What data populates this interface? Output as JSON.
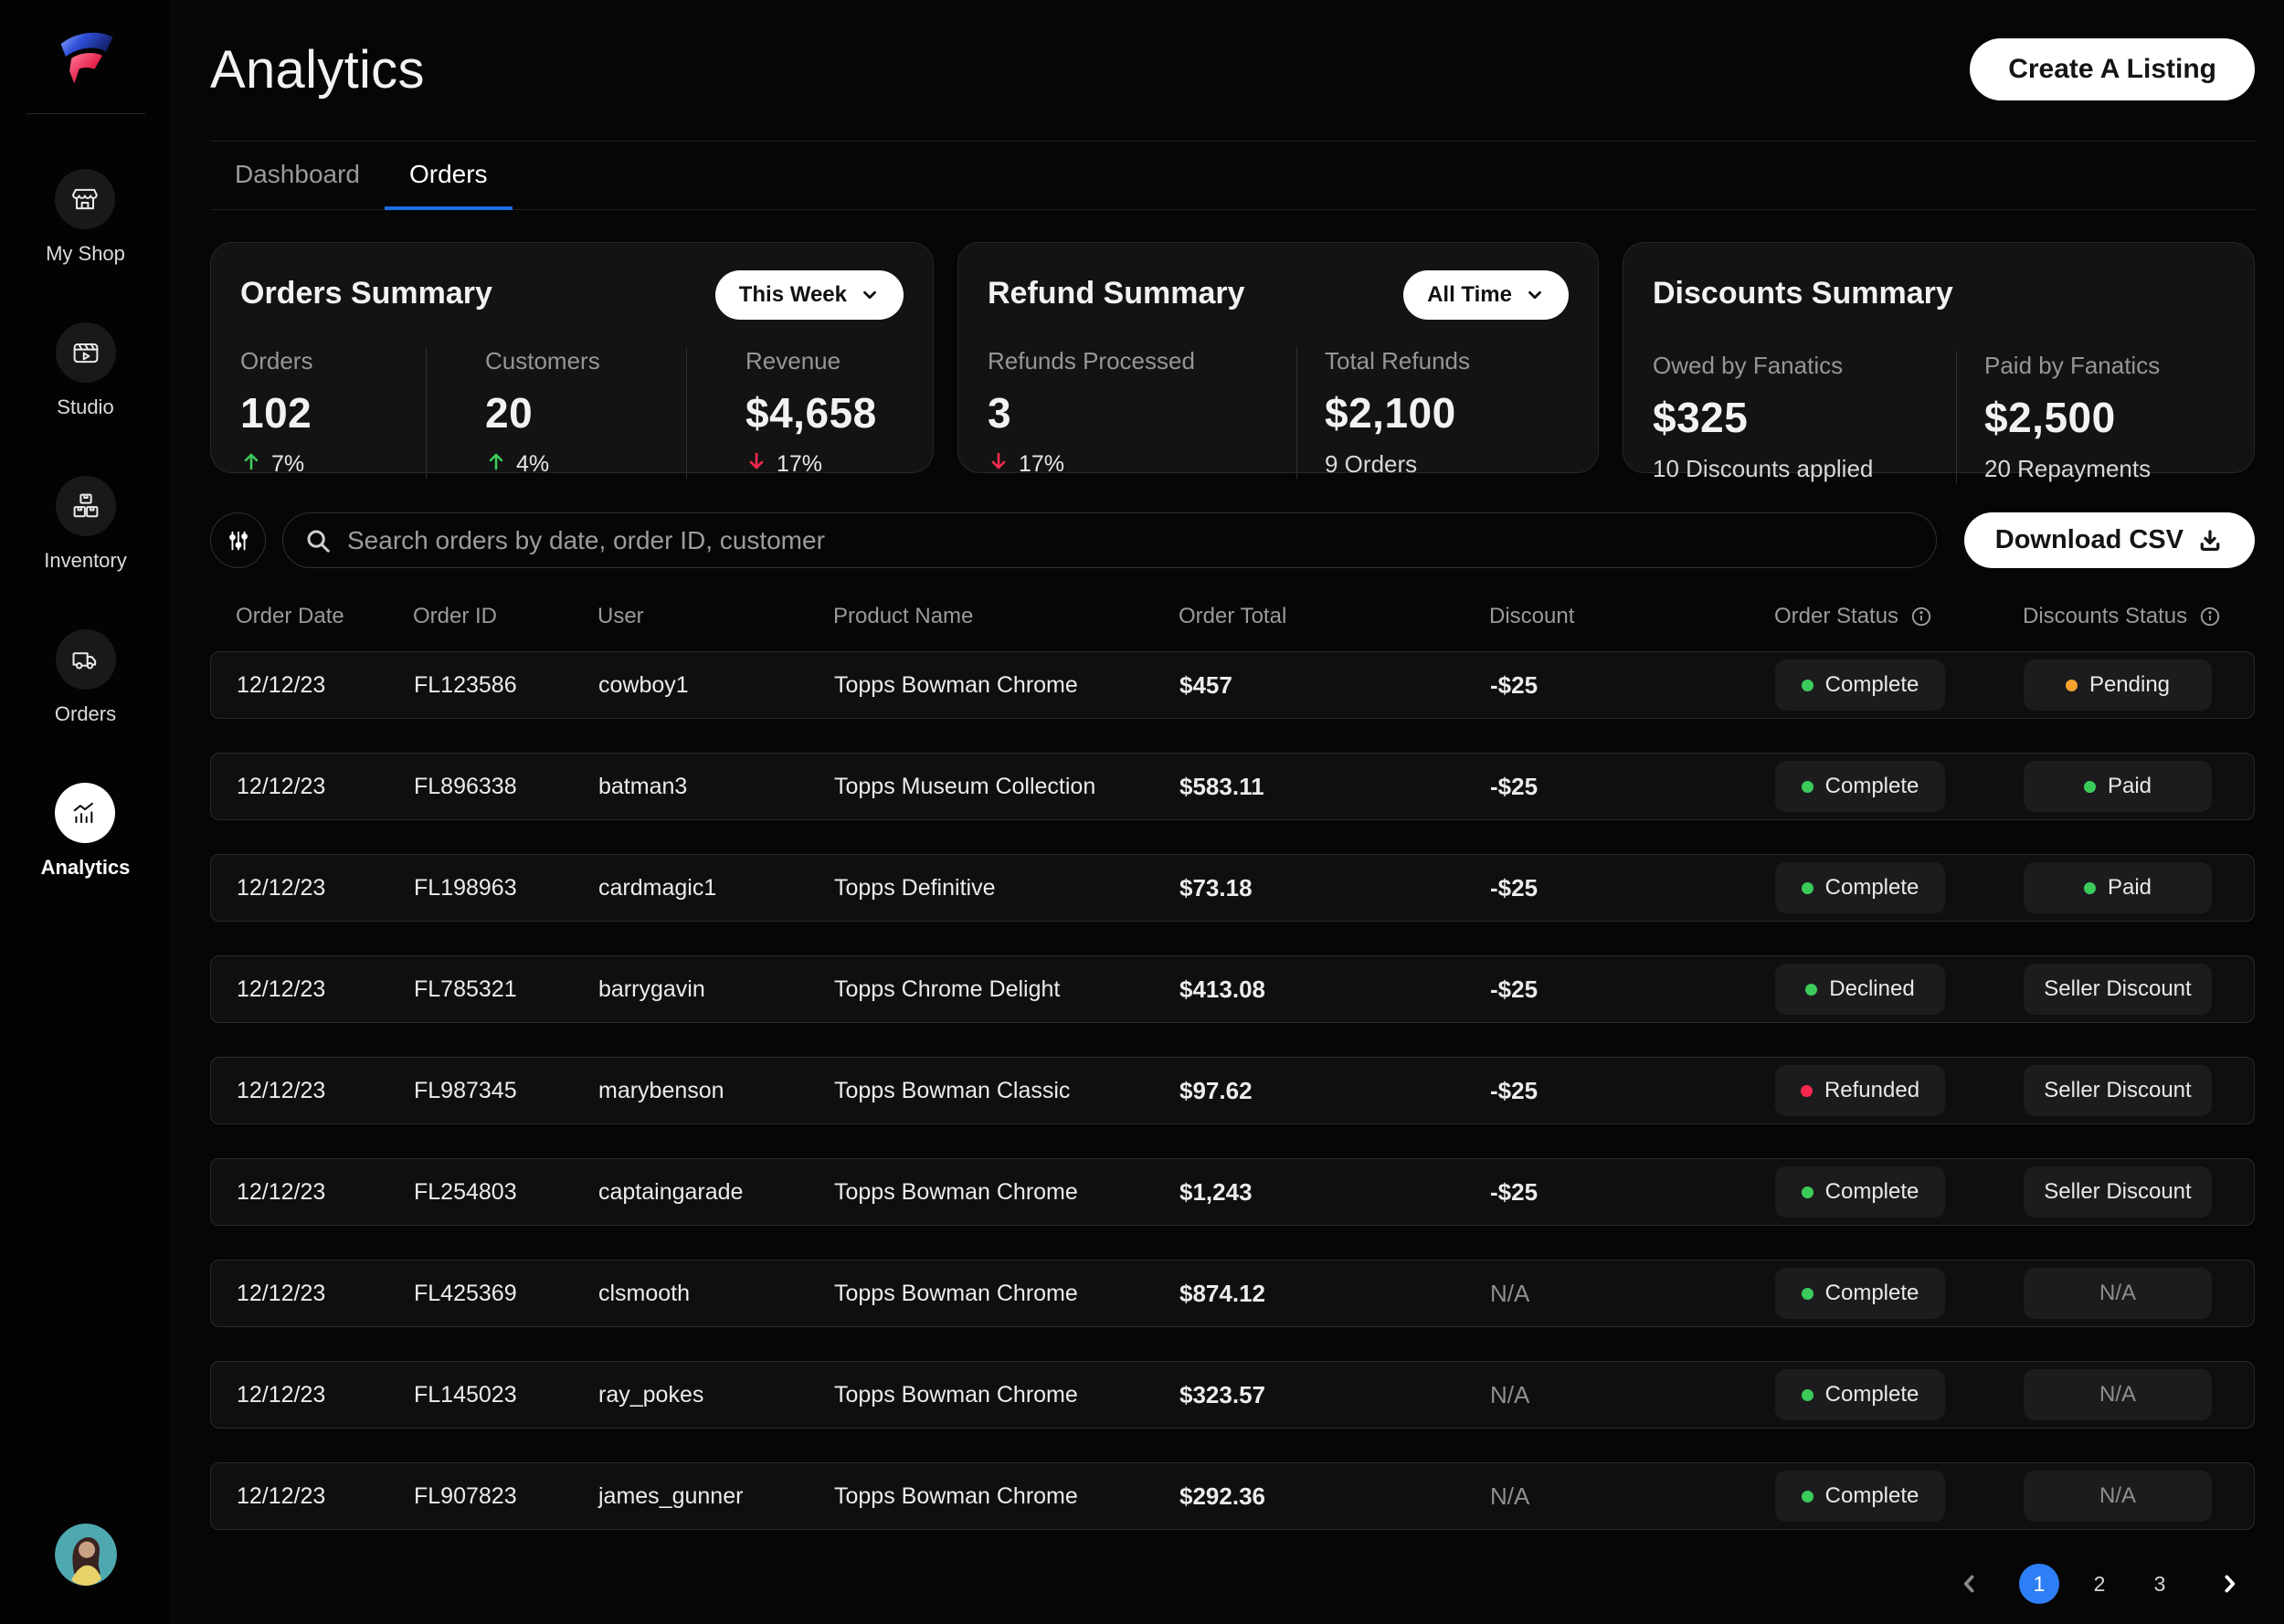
{
  "app": {
    "page_title": "Analytics",
    "create_listing_label": "Create A Listing"
  },
  "sidebar": {
    "items": [
      {
        "label": "My Shop",
        "icon": "storefront-icon",
        "active": false
      },
      {
        "label": "Studio",
        "icon": "studio-icon",
        "active": false
      },
      {
        "label": "Inventory",
        "icon": "inventory-icon",
        "active": false
      },
      {
        "label": "Orders",
        "icon": "truck-icon",
        "active": false
      },
      {
        "label": "Analytics",
        "icon": "analytics-icon",
        "active": true
      }
    ]
  },
  "tabs": [
    {
      "label": "Dashboard",
      "active": false
    },
    {
      "label": "Orders",
      "active": true
    }
  ],
  "cards": {
    "orders_summary": {
      "title": "Orders Summary",
      "period": "This Week",
      "metrics": [
        {
          "label": "Orders",
          "value": "102",
          "delta": "7%",
          "direction": "up"
        },
        {
          "label": "Customers",
          "value": "20",
          "delta": "4%",
          "direction": "up"
        },
        {
          "label": "Revenue",
          "value": "$4,658",
          "delta": "17%",
          "direction": "down"
        }
      ]
    },
    "refund_summary": {
      "title": "Refund Summary",
      "period": "All Time",
      "metrics": [
        {
          "label": "Refunds Processed",
          "value": "3",
          "delta": "17%",
          "direction": "down"
        },
        {
          "label": "Total Refunds",
          "value": "$2,100",
          "sub": "9 Orders"
        }
      ]
    },
    "discounts_summary": {
      "title": "Discounts Summary",
      "metrics": [
        {
          "label": "Owed by Fanatics",
          "value": "$325",
          "sub": "10 Discounts applied"
        },
        {
          "label": "Paid by Fanatics",
          "value": "$2,500",
          "sub": "20 Repayments"
        }
      ]
    }
  },
  "toolbar": {
    "search_placeholder": "Search orders by date, order ID, customer",
    "download_csv_label": "Download CSV"
  },
  "table": {
    "columns": [
      "Order Date",
      "Order ID",
      "User",
      "Product Name",
      "Order Total",
      "Discount",
      "Order Status",
      "Discounts Status"
    ],
    "rows": [
      {
        "date": "12/12/23",
        "id": "FL123586",
        "user": "cowboy1",
        "product": "Topps Bowman Chrome",
        "total": "$457",
        "discount": "-$25",
        "status": "Complete",
        "status_dot": "green",
        "discount_status": "Pending",
        "discount_status_dot": "orange"
      },
      {
        "date": "12/12/23",
        "id": "FL896338",
        "user": "batman3",
        "product": "Topps Museum Collection",
        "total": "$583.11",
        "discount": "-$25",
        "status": "Complete",
        "status_dot": "green",
        "discount_status": "Paid",
        "discount_status_dot": "green"
      },
      {
        "date": "12/12/23",
        "id": "FL198963",
        "user": "cardmagic1",
        "product": "Topps Definitive",
        "total": "$73.18",
        "discount": "-$25",
        "status": "Complete",
        "status_dot": "green",
        "discount_status": "Paid",
        "discount_status_dot": "green"
      },
      {
        "date": "12/12/23",
        "id": "FL785321",
        "user": "barrygavin",
        "product": "Topps Chrome Delight",
        "total": "$413.08",
        "discount": "-$25",
        "status": "Declined",
        "status_dot": "green",
        "discount_status": "Seller Discount",
        "discount_status_dot": null
      },
      {
        "date": "12/12/23",
        "id": "FL987345",
        "user": "marybenson",
        "product": "Topps Bowman Classic",
        "total": "$97.62",
        "discount": "-$25",
        "status": "Refunded",
        "status_dot": "pink",
        "discount_status": "Seller Discount",
        "discount_status_dot": null
      },
      {
        "date": "12/12/23",
        "id": "FL254803",
        "user": "captaingarade",
        "product": "Topps Bowman Chrome",
        "total": "$1,243",
        "discount": "-$25",
        "status": "Complete",
        "status_dot": "green",
        "discount_status": "Seller Discount",
        "discount_status_dot": null
      },
      {
        "date": "12/12/23",
        "id": "FL425369",
        "user": "clsmooth",
        "product": "Topps Bowman Chrome",
        "total": "$874.12",
        "discount": "N/A",
        "status": "Complete",
        "status_dot": "green",
        "discount_status": "N/A",
        "discount_status_dot": null
      },
      {
        "date": "12/12/23",
        "id": "FL145023",
        "user": "ray_pokes",
        "product": "Topps Bowman Chrome",
        "total": "$323.57",
        "discount": "N/A",
        "status": "Complete",
        "status_dot": "green",
        "discount_status": "N/A",
        "discount_status_dot": null
      },
      {
        "date": "12/12/23",
        "id": "FL907823",
        "user": "james_gunner",
        "product": "Topps Bowman Chrome",
        "total": "$292.36",
        "discount": "N/A",
        "status": "Complete",
        "status_dot": "green",
        "discount_status": "N/A",
        "discount_status_dot": null
      }
    ]
  },
  "pagination": {
    "pages": [
      "1",
      "2",
      "3"
    ],
    "active": "1"
  },
  "colors": {
    "accent_blue": "#2e7ef7",
    "tab_underline_blue": "#1a6ee0",
    "status_green": "#3bcb5b",
    "status_orange": "#f7a12f",
    "status_pink": "#fb2950",
    "trend_up_green": "#3bcb5b",
    "trend_down_red": "#fb2950"
  }
}
